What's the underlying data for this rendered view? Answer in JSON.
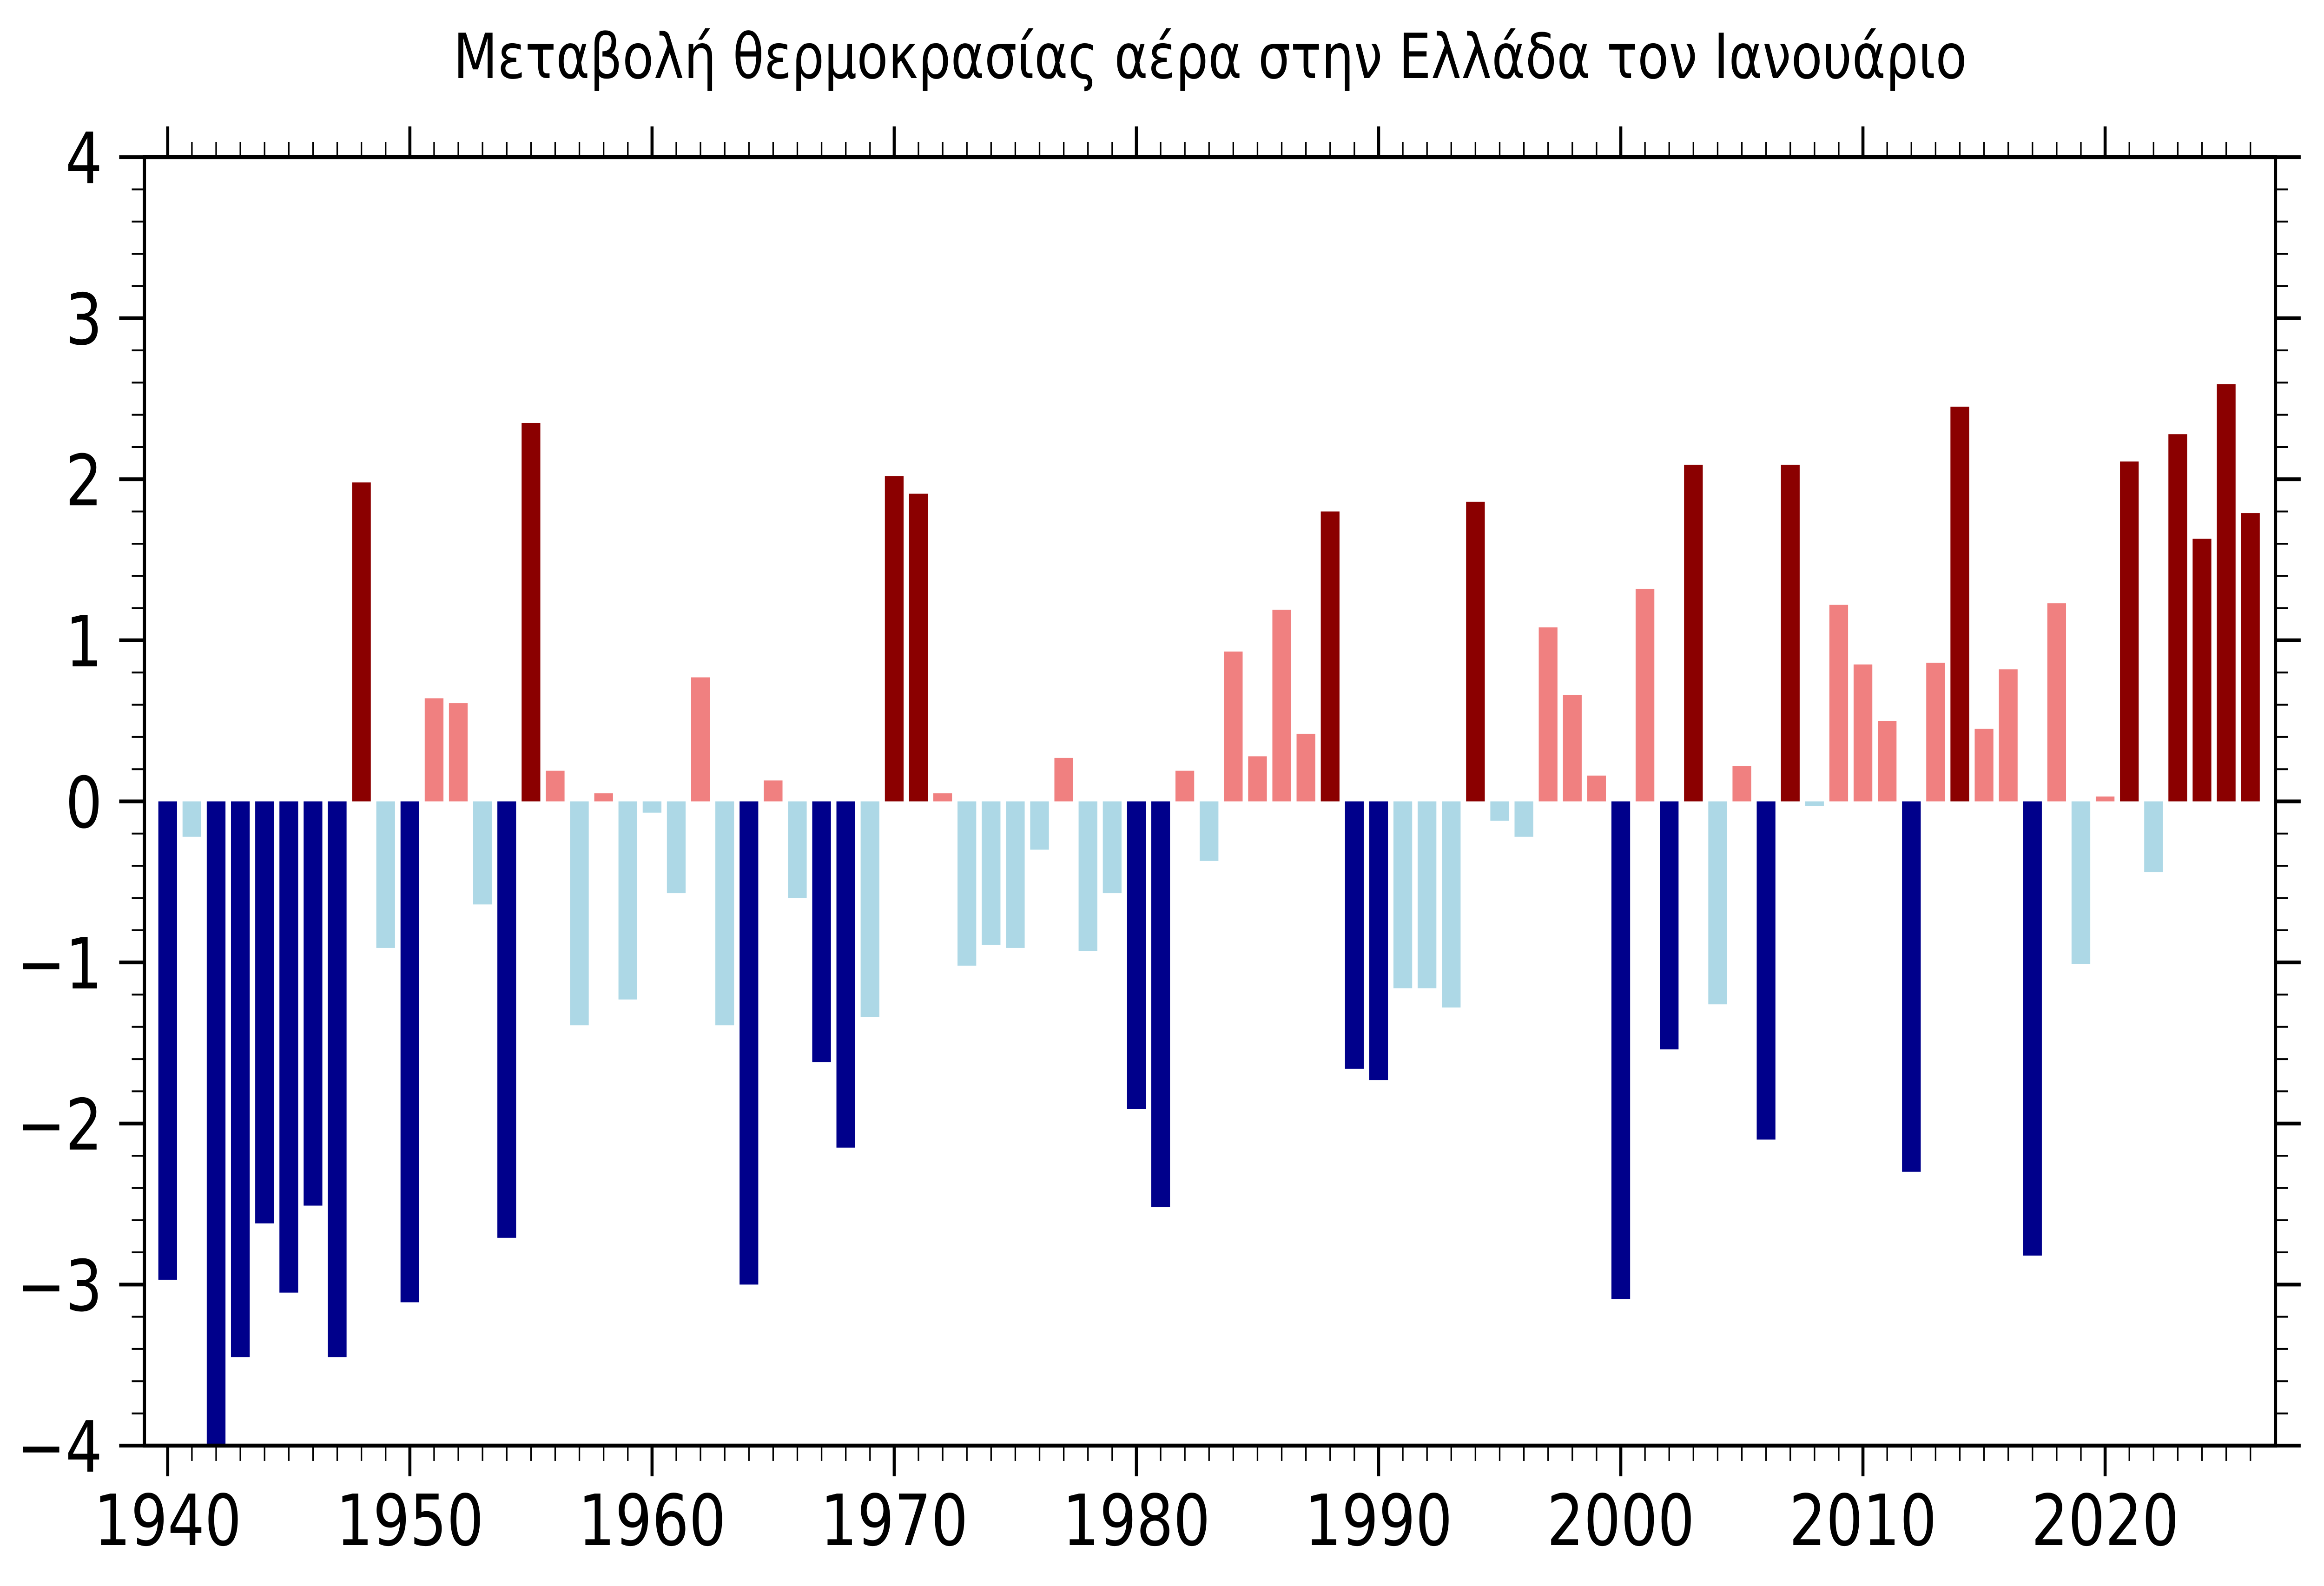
{
  "page": {
    "background": "#ffffff"
  },
  "chart_data": {
    "type": "bar",
    "title": "Μεταβολή θερμοκρασίας αέρα στην Ελλάδα τον Ιανουάριο",
    "xlabel": "",
    "ylabel": "",
    "years": [
      1940,
      1941,
      1942,
      1943,
      1944,
      1945,
      1946,
      1947,
      1948,
      1949,
      1950,
      1951,
      1952,
      1953,
      1954,
      1955,
      1956,
      1957,
      1958,
      1959,
      1960,
      1961,
      1962,
      1963,
      1964,
      1965,
      1966,
      1967,
      1968,
      1969,
      1970,
      1971,
      1972,
      1973,
      1974,
      1975,
      1976,
      1977,
      1978,
      1979,
      1980,
      1981,
      1982,
      1983,
      1984,
      1985,
      1986,
      1987,
      1988,
      1989,
      1990,
      1991,
      1992,
      1993,
      1994,
      1995,
      1996,
      1997,
      1998,
      1999,
      2000,
      2001,
      2002,
      2003,
      2004,
      2005,
      2006,
      2007,
      2008,
      2009,
      2010,
      2011,
      2012,
      2013,
      2014,
      2015,
      2016,
      2017,
      2018,
      2019,
      2020,
      2021,
      2022,
      2023,
      2024,
      2025,
      2026
    ],
    "values": [
      -2.97,
      -0.22,
      -4.0,
      -3.45,
      -2.62,
      -3.05,
      -2.51,
      -3.45,
      1.98,
      -0.91,
      -3.11,
      0.64,
      0.61,
      -0.64,
      -2.71,
      2.35,
      0.19,
      -1.39,
      0.05,
      -1.23,
      -0.07,
      -0.57,
      0.77,
      -1.39,
      -3.0,
      0.13,
      -0.6,
      -1.62,
      -2.15,
      -1.34,
      2.02,
      1.91,
      0.05,
      -1.02,
      -0.89,
      -0.91,
      -0.3,
      0.27,
      -0.93,
      -0.57,
      -1.91,
      -2.52,
      0.19,
      -0.37,
      0.93,
      0.28,
      1.19,
      0.42,
      1.8,
      -1.66,
      -1.73,
      -1.16,
      -1.16,
      -1.28,
      1.86,
      -0.12,
      -0.22,
      1.08,
      0.66,
      0.16,
      -3.09,
      1.32,
      -1.54,
      2.09,
      -1.26,
      0.22,
      -2.1,
      2.09,
      -0.03,
      1.22,
      0.85,
      0.5,
      -2.3,
      0.86,
      2.45,
      0.45,
      0.82,
      -2.82,
      1.23,
      -1.01,
      0.03,
      2.11,
      -0.44,
      2.28,
      1.63,
      2.59,
      1.79
    ],
    "ylim": [
      -4,
      4
    ],
    "xlim": [
      1939.0,
      2027.1
    ],
    "y_major_ticks": [
      4,
      3,
      2,
      1,
      0,
      -1,
      -2,
      -3,
      -4
    ],
    "y_tick_labels": [
      "4",
      "3",
      "2",
      "1",
      "0",
      "−1",
      "−2",
      "−3",
      "−4"
    ],
    "y_minor_step": 0.2,
    "x_major_ticks": [
      1940,
      1950,
      1960,
      1970,
      1980,
      1990,
      2000,
      2010,
      2020
    ],
    "x_tick_labels": [
      "1940",
      "1950",
      "1960",
      "1970",
      "1980",
      "1990",
      "2000",
      "2010",
      "2020"
    ],
    "x_minor_step": 1,
    "grid": false,
    "legend": null,
    "bar_color_rule": {
      "threshold": 1.5,
      "strong_warm": "#8b0000",
      "mild_warm": "#f08080",
      "mild_cool": "#add8e6",
      "strong_cool": "#00008b"
    },
    "axis_color": "#000000",
    "background": "#ffffff"
  }
}
